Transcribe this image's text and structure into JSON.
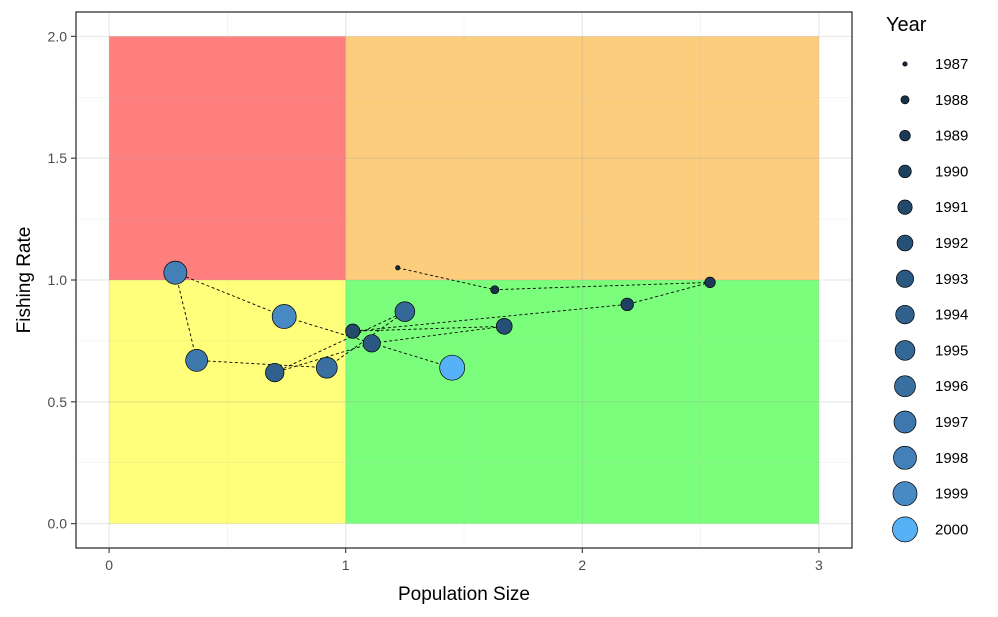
{
  "chart_data": {
    "type": "scatter",
    "title": "",
    "xlabel": "Population Size",
    "ylabel": "Fishing Rate",
    "xlim": [
      -0.14,
      3.14
    ],
    "ylim": [
      -0.1,
      2.1
    ],
    "xticks": [
      0,
      1,
      2,
      3
    ],
    "xtick_labels": [
      "0",
      "1",
      "2",
      "3"
    ],
    "yticks": [
      0.0,
      0.5,
      1.0,
      1.5,
      2.0
    ],
    "ytick_labels": [
      "0.0",
      "0.5",
      "1.0",
      "1.5",
      "2.0"
    ],
    "grid": true,
    "legend": {
      "title": "Year",
      "position": "right"
    },
    "zones": [
      {
        "x": [
          0,
          1
        ],
        "y": [
          1,
          2
        ],
        "color": "#ff7f7f"
      },
      {
        "x": [
          1,
          3
        ],
        "y": [
          1,
          2
        ],
        "color": "#fccd7c"
      },
      {
        "x": [
          0,
          1
        ],
        "y": [
          0,
          1
        ],
        "color": "#ffff7b"
      },
      {
        "x": [
          1,
          3
        ],
        "y": [
          0,
          1
        ],
        "color": "#7bfe7b"
      }
    ],
    "connected_path": true,
    "points": [
      {
        "year": "1987",
        "x": 1.22,
        "y": 1.05,
        "color": "#132b43"
      },
      {
        "year": "1988",
        "x": 1.63,
        "y": 0.96,
        "color": "#17324d"
      },
      {
        "year": "1989",
        "x": 2.54,
        "y": 0.99,
        "color": "#1b3a57"
      },
      {
        "year": "1990",
        "x": 2.19,
        "y": 0.9,
        "color": "#1f4161"
      },
      {
        "year": "1991",
        "x": 1.03,
        "y": 0.79,
        "color": "#23496b"
      },
      {
        "year": "1992",
        "x": 1.67,
        "y": 0.81,
        "color": "#275076"
      },
      {
        "year": "1993",
        "x": 1.11,
        "y": 0.74,
        "color": "#2b5880"
      },
      {
        "year": "1994",
        "x": 0.7,
        "y": 0.62,
        "color": "#30608b"
      },
      {
        "year": "1995",
        "x": 1.25,
        "y": 0.87,
        "color": "#346896"
      },
      {
        "year": "1996",
        "x": 0.92,
        "y": 0.64,
        "color": "#3970a1"
      },
      {
        "year": "1997",
        "x": 0.37,
        "y": 0.67,
        "color": "#3d78ac"
      },
      {
        "year": "1998",
        "x": 0.28,
        "y": 1.03,
        "color": "#4280b7"
      },
      {
        "year": "1999",
        "x": 0.74,
        "y": 0.85,
        "color": "#4789c2"
      },
      {
        "year": "2000",
        "x": 1.45,
        "y": 0.64,
        "color": "#56b1f7"
      }
    ],
    "size_min_year": 1987,
    "size_max_year": 2000
  }
}
